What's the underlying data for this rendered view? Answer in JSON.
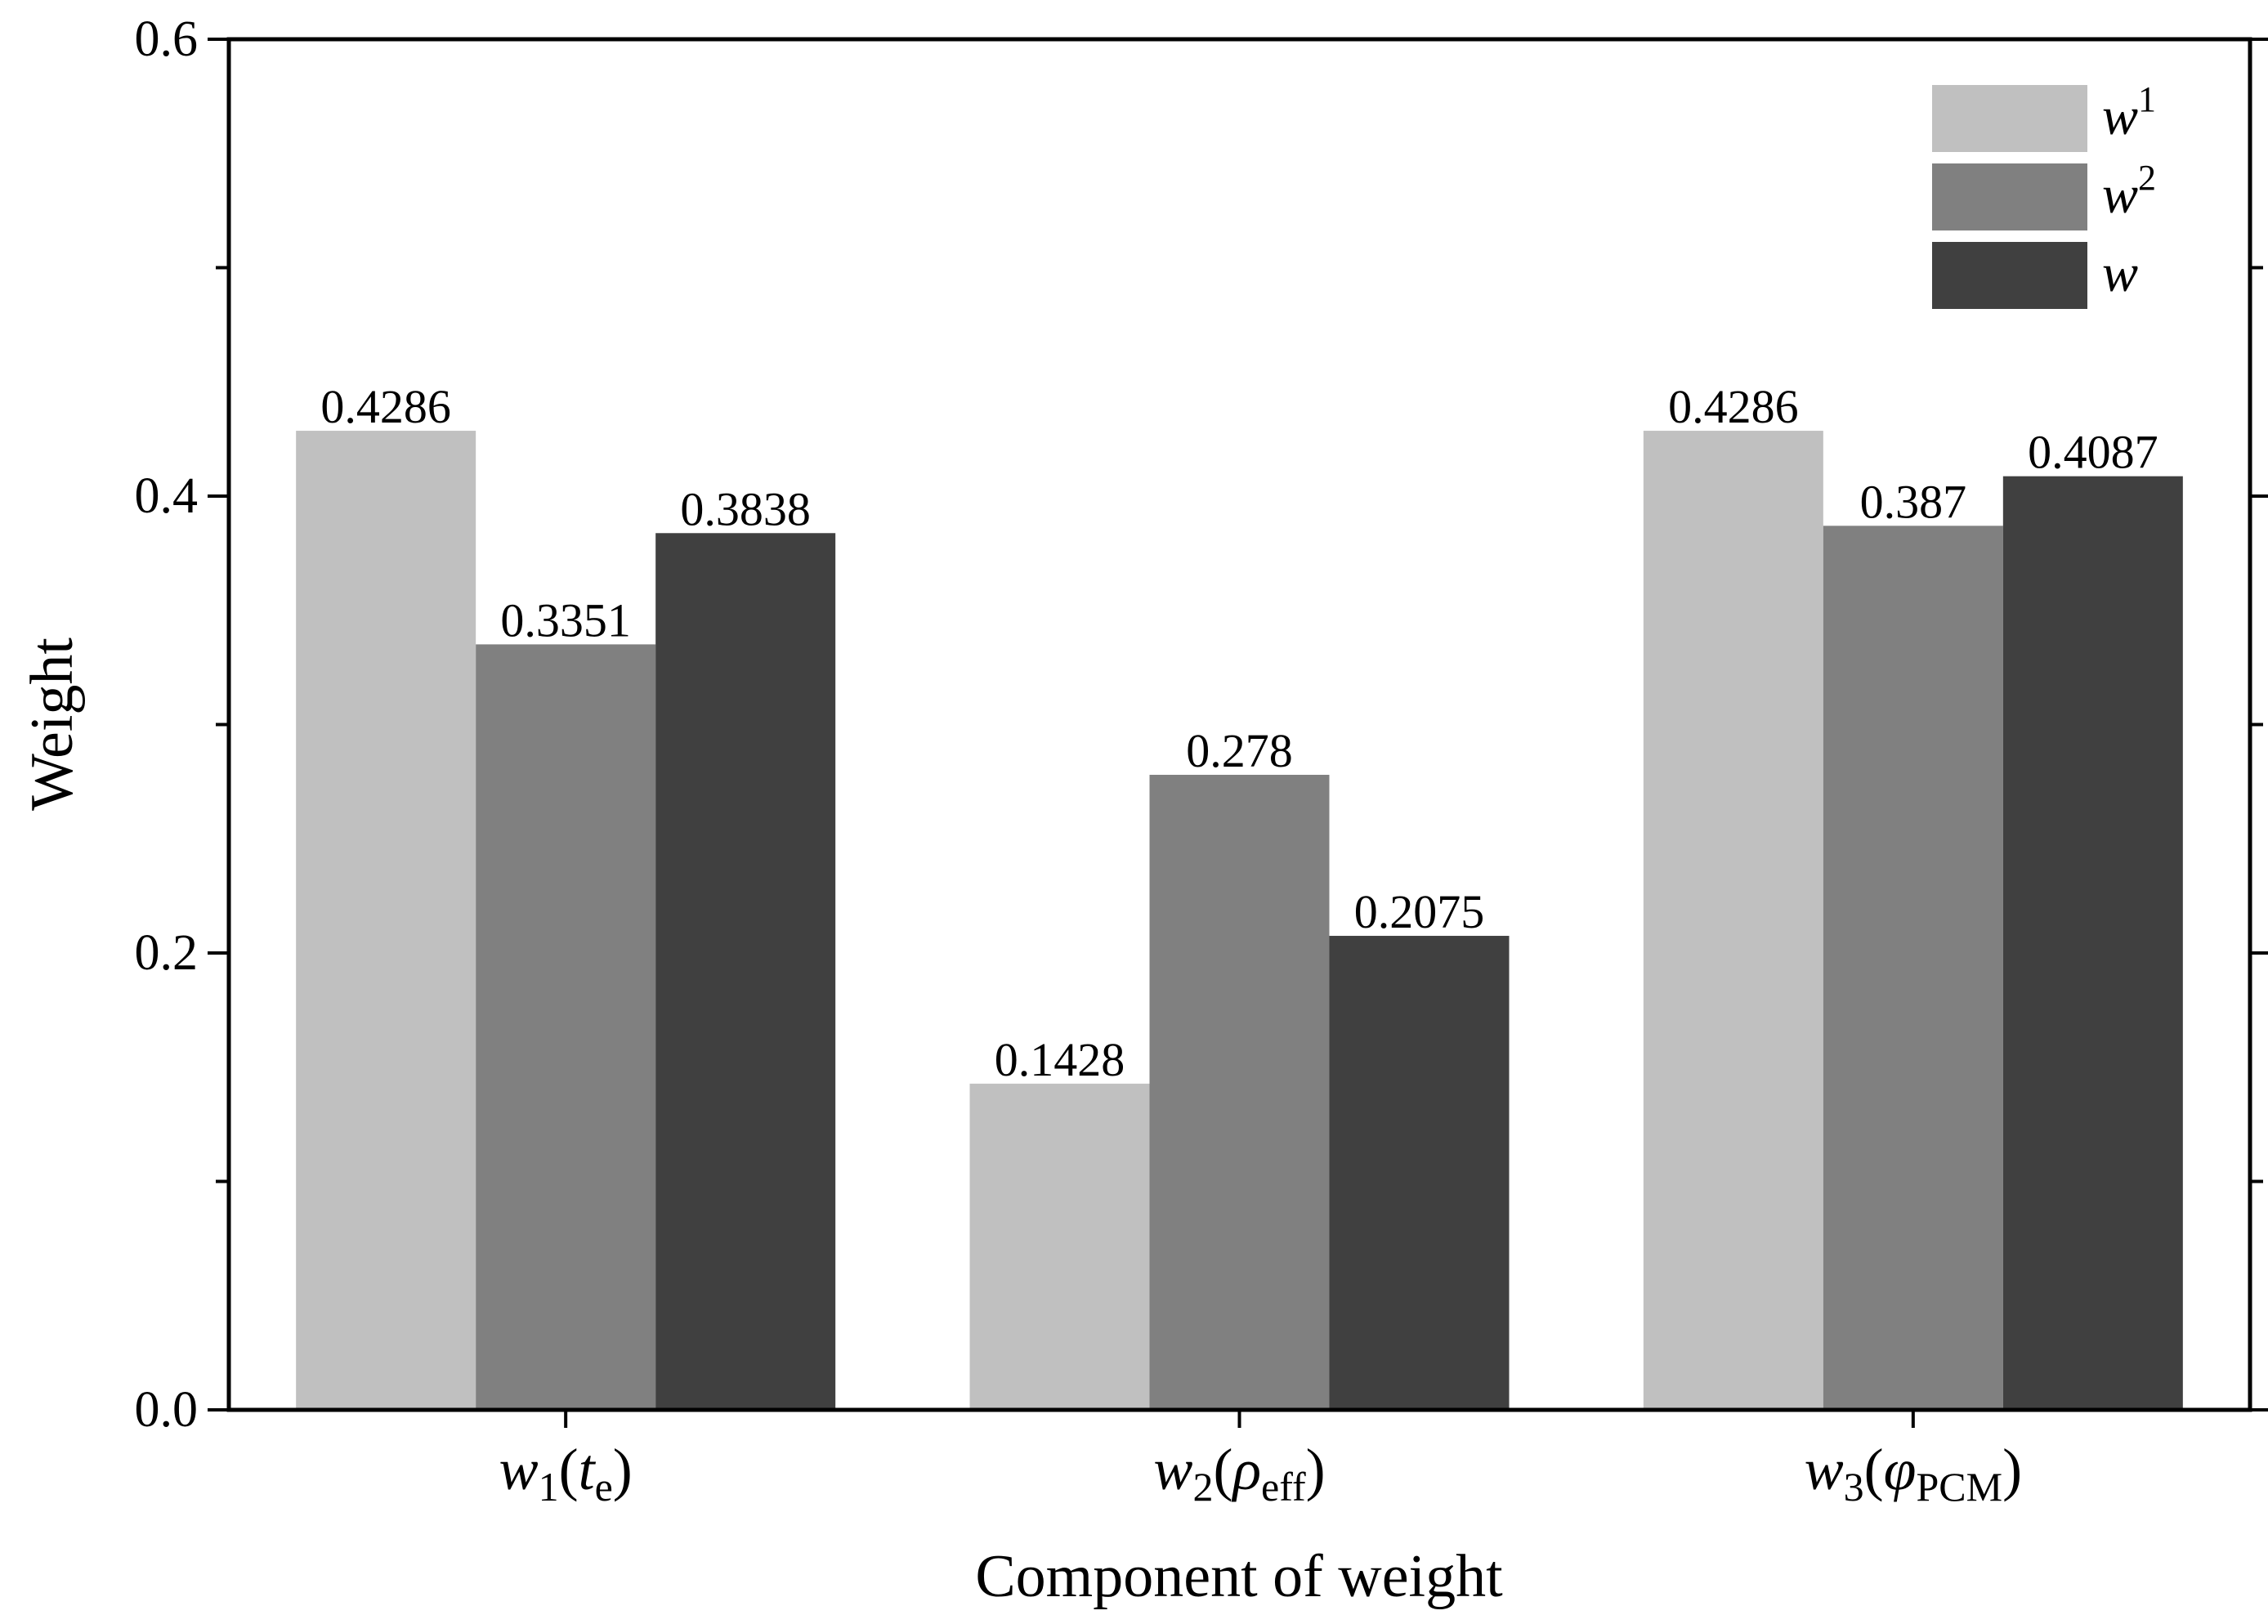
{
  "chart_data": {
    "type": "bar",
    "xlabel": "Component of weight",
    "ylabel": "Weight",
    "ylim": [
      0,
      0.6
    ],
    "yticks": [
      "0.0",
      "0.2",
      "0.4",
      "0.6"
    ],
    "grid": false,
    "legend_position": "top-right",
    "categories": [
      {
        "base": "w",
        "sub": "1",
        "arg": "t",
        "arg_sub": "e",
        "arg_italic": true
      },
      {
        "base": "w",
        "sub": "2",
        "arg": "ρ",
        "arg_sub": "eff",
        "arg_italic": true
      },
      {
        "base": "w",
        "sub": "3",
        "arg": "φ",
        "arg_sub": "PCM",
        "arg_italic": true
      }
    ],
    "series": [
      {
        "name": "w",
        "sup": "1",
        "color": "#c0c0c0",
        "values": [
          0.4286,
          0.1428,
          0.4286
        ],
        "labels": [
          "0.4286",
          "0.1428",
          "0.4286"
        ]
      },
      {
        "name": "w",
        "sup": "2",
        "color": "#808080",
        "values": [
          0.3351,
          0.278,
          0.387
        ],
        "labels": [
          "0.3351",
          "0.278",
          "0.387"
        ]
      },
      {
        "name": "w",
        "sup": "",
        "color": "#404040",
        "values": [
          0.3838,
          0.2075,
          0.4087
        ],
        "labels": [
          "0.3838",
          "0.2075",
          "0.4087"
        ]
      }
    ]
  }
}
